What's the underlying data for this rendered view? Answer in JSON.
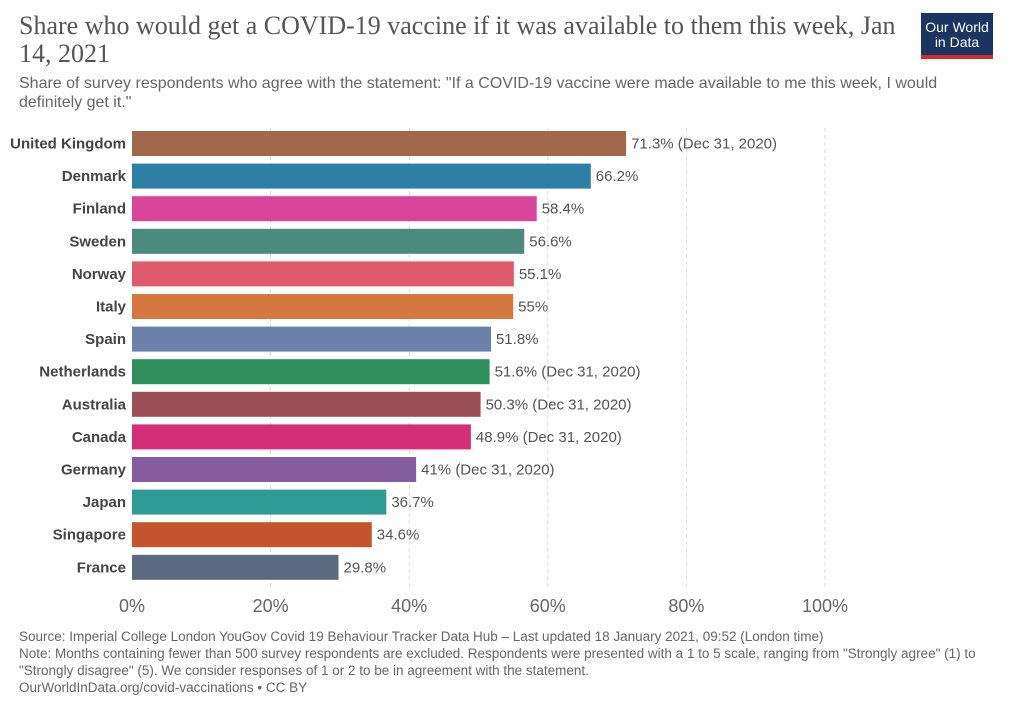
{
  "header": {
    "title": "Share who would get a COVID-19 vaccine if it was available to them this week, Jan 14, 2021",
    "subtitle": "Share of survey respondents who agree with the statement: \"If a COVID-19 vaccine were made available to me this week, I would definitely get it.\"",
    "logo_line1": "Our World",
    "logo_line2": "in Data"
  },
  "colors": {
    "logo_bg": "#1a3660",
    "logo_accent": "#d42b2b",
    "gridline": "#dddddd",
    "label_text": "#555555",
    "category_text": "#444444"
  },
  "chart_data": {
    "type": "bar",
    "orientation": "horizontal",
    "title": "Share who would get a COVID-19 vaccine if it was available to them this week, Jan 14, 2021",
    "xlabel": "",
    "ylabel": "",
    "xlim": [
      0,
      100
    ],
    "xticks": [
      0,
      20,
      40,
      60,
      80,
      100
    ],
    "xtick_labels": [
      "0%",
      "20%",
      "40%",
      "60%",
      "80%",
      "100%"
    ],
    "categories": [
      "United Kingdom",
      "Denmark",
      "Finland",
      "Sweden",
      "Norway",
      "Italy",
      "Spain",
      "Netherlands",
      "Australia",
      "Canada",
      "Germany",
      "Japan",
      "Singapore",
      "France"
    ],
    "values": [
      71.3,
      66.2,
      58.4,
      56.6,
      55.1,
      55,
      51.8,
      51.6,
      50.3,
      48.9,
      41,
      36.7,
      34.6,
      29.8
    ],
    "value_labels": [
      "71.3% (Dec 31, 2020)",
      "66.2%",
      "58.4%",
      "56.6%",
      "55.1%",
      "55%",
      "51.8%",
      "51.6% (Dec 31, 2020)",
      "50.3% (Dec 31, 2020)",
      "48.9% (Dec 31, 2020)",
      "41% (Dec 31, 2020)",
      "36.7%",
      "34.6%",
      "29.8%"
    ],
    "bar_colors": [
      "#a2684a",
      "#2d7fa6",
      "#d8449a",
      "#4b8b7d",
      "#df5a6a",
      "#d5773f",
      "#6b81ab",
      "#2e8f5c",
      "#9a4f55",
      "#d42d78",
      "#865ca1",
      "#2e9b94",
      "#c5552c",
      "#5a6a80"
    ],
    "grid": true
  },
  "footer": {
    "source": "Source: Imperial College London YouGov Covid 19 Behaviour Tracker Data Hub – Last updated 18 January 2021, 09:52 (London time)",
    "note": "Note: Months containing fewer than 500 survey respondents are excluded. Respondents were presented with a 1 to 5 scale, ranging from \"Strongly agree\" (1) to \"Strongly disagree\" (5). We consider responses of 1 or 2 to be in agreement with the statement.",
    "credit": "OurWorldInData.org/covid-vaccinations • CC BY"
  }
}
